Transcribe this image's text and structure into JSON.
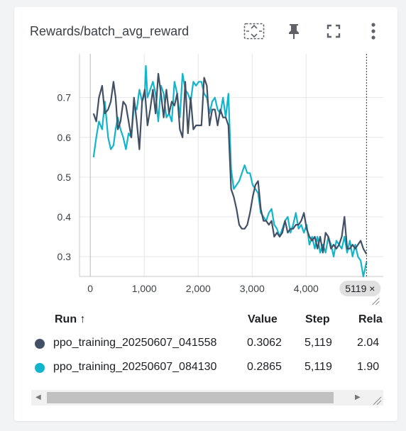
{
  "card": {
    "title": "Rewards/batch_avg_reward"
  },
  "toolbar": {
    "icons": [
      "fit-to-data-icon",
      "pin-icon",
      "fullscreen-icon",
      "more-vert-icon"
    ]
  },
  "chart_data": {
    "type": "line",
    "xlim": [
      -200,
      5430
    ],
    "ylim": [
      0.25,
      0.81
    ],
    "x_ticks": [
      "0",
      "1,000",
      "2,000",
      "3,000",
      "4,000"
    ],
    "x_tick_values": [
      0,
      1000,
      2000,
      3000,
      4000
    ],
    "y_ticks": [
      "0.3",
      "0.4",
      "0.5",
      "0.6",
      "0.7"
    ],
    "y_tick_values": [
      0.3,
      0.4,
      0.5,
      0.6,
      0.7
    ],
    "hover_step_label": "5119 ×",
    "hover_step": 5119,
    "series": [
      {
        "color": "#12b5cb",
        "points": [
          [
            60,
            0.55
          ],
          [
            110,
            0.6
          ],
          [
            160,
            0.64
          ],
          [
            220,
            0.62
          ],
          [
            270,
            0.69
          ],
          [
            330,
            0.6
          ],
          [
            380,
            0.57
          ],
          [
            430,
            0.58
          ],
          [
            470,
            0.62
          ],
          [
            510,
            0.65
          ],
          [
            560,
            0.62
          ],
          [
            610,
            0.6
          ],
          [
            660,
            0.57
          ],
          [
            710,
            0.61
          ],
          [
            760,
            0.6
          ],
          [
            810,
            0.68
          ],
          [
            860,
            0.67
          ],
          [
            910,
            0.72
          ],
          [
            960,
            0.69
          ],
          [
            1010,
            0.71
          ],
          [
            1030,
            0.78
          ],
          [
            1060,
            0.7
          ],
          [
            1110,
            0.72
          ],
          [
            1160,
            0.74
          ],
          [
            1210,
            0.71
          ],
          [
            1260,
            0.64
          ],
          [
            1310,
            0.73
          ],
          [
            1360,
            0.71
          ],
          [
            1410,
            0.65
          ],
          [
            1460,
            0.66
          ],
          [
            1510,
            0.64
          ],
          [
            1560,
            0.74
          ],
          [
            1610,
            0.71
          ],
          [
            1660,
            0.65
          ],
          [
            1710,
            0.76
          ],
          [
            1760,
            0.72
          ],
          [
            1810,
            0.71
          ],
          [
            1860,
            0.69
          ],
          [
            1910,
            0.74
          ],
          [
            1960,
            0.73
          ],
          [
            2010,
            0.74
          ],
          [
            2060,
            0.74
          ],
          [
            2110,
            0.71
          ],
          [
            2160,
            0.7
          ],
          [
            2210,
            0.66
          ],
          [
            2260,
            0.69
          ],
          [
            2310,
            0.7
          ],
          [
            2360,
            0.67
          ],
          [
            2410,
            0.66
          ],
          [
            2460,
            0.7
          ],
          [
            2510,
            0.65
          ],
          [
            2560,
            0.71
          ],
          [
            2610,
            0.52
          ],
          [
            2660,
            0.47
          ],
          [
            2710,
            0.48
          ],
          [
            2760,
            0.49
          ],
          [
            2810,
            0.51
          ],
          [
            2860,
            0.53
          ],
          [
            2910,
            0.51
          ],
          [
            2960,
            0.51
          ],
          [
            3010,
            0.48
          ],
          [
            3060,
            0.47
          ],
          [
            3110,
            0.46
          ],
          [
            3160,
            0.41
          ],
          [
            3210,
            0.4
          ],
          [
            3260,
            0.39
          ],
          [
            3310,
            0.41
          ],
          [
            3360,
            0.42
          ],
          [
            3410,
            0.38
          ],
          [
            3460,
            0.37
          ],
          [
            3510,
            0.35
          ],
          [
            3560,
            0.37
          ],
          [
            3610,
            0.39
          ],
          [
            3660,
            0.4
          ],
          [
            3710,
            0.36
          ],
          [
            3760,
            0.38
          ],
          [
            3810,
            0.41
          ],
          [
            3860,
            0.37
          ],
          [
            3910,
            0.38
          ],
          [
            3960,
            0.36
          ],
          [
            4010,
            0.38
          ],
          [
            4060,
            0.33
          ],
          [
            4110,
            0.35
          ],
          [
            4160,
            0.32
          ],
          [
            4210,
            0.35
          ],
          [
            4260,
            0.31
          ],
          [
            4310,
            0.33
          ],
          [
            4360,
            0.31
          ],
          [
            4410,
            0.35
          ],
          [
            4460,
            0.33
          ],
          [
            4510,
            0.3
          ],
          [
            4560,
            0.34
          ],
          [
            4610,
            0.33
          ],
          [
            4660,
            0.32
          ],
          [
            4710,
            0.35
          ],
          [
            4760,
            0.31
          ],
          [
            4810,
            0.34
          ],
          [
            4860,
            0.3
          ],
          [
            4910,
            0.33
          ],
          [
            4960,
            0.3
          ],
          [
            5010,
            0.29
          ],
          [
            5060,
            0.25
          ],
          [
            5119,
            0.2865
          ]
        ]
      },
      {
        "color": "#425066",
        "points": [
          [
            60,
            0.66
          ],
          [
            110,
            0.64
          ],
          [
            160,
            0.7
          ],
          [
            220,
            0.73
          ],
          [
            270,
            0.66
          ],
          [
            330,
            0.67
          ],
          [
            380,
            0.69
          ],
          [
            430,
            0.74
          ],
          [
            470,
            0.7
          ],
          [
            510,
            0.62
          ],
          [
            560,
            0.64
          ],
          [
            610,
            0.69
          ],
          [
            660,
            0.68
          ],
          [
            710,
            0.64
          ],
          [
            760,
            0.6
          ],
          [
            810,
            0.7
          ],
          [
            860,
            0.64
          ],
          [
            910,
            0.57
          ],
          [
            960,
            0.69
          ],
          [
            1010,
            0.72
          ],
          [
            1060,
            0.63
          ],
          [
            1110,
            0.67
          ],
          [
            1160,
            0.72
          ],
          [
            1210,
            0.66
          ],
          [
            1260,
            0.76
          ],
          [
            1310,
            0.71
          ],
          [
            1360,
            0.65
          ],
          [
            1410,
            0.72
          ],
          [
            1460,
            0.66
          ],
          [
            1510,
            0.69
          ],
          [
            1560,
            0.68
          ],
          [
            1610,
            0.71
          ],
          [
            1660,
            0.62
          ],
          [
            1710,
            0.6
          ],
          [
            1760,
            0.74
          ],
          [
            1810,
            0.61
          ],
          [
            1860,
            0.7
          ],
          [
            1910,
            0.62
          ],
          [
            1960,
            0.63
          ],
          [
            2010,
            0.63
          ],
          [
            2060,
            0.63
          ],
          [
            2110,
            0.75
          ],
          [
            2160,
            0.73
          ],
          [
            2210,
            0.63
          ],
          [
            2260,
            0.67
          ],
          [
            2310,
            0.67
          ],
          [
            2360,
            0.63
          ],
          [
            2410,
            0.67
          ],
          [
            2460,
            0.65
          ],
          [
            2510,
            0.65
          ],
          [
            2560,
            0.63
          ],
          [
            2610,
            0.47
          ],
          [
            2660,
            0.45
          ],
          [
            2710,
            0.42
          ],
          [
            2760,
            0.38
          ],
          [
            2810,
            0.37
          ],
          [
            2860,
            0.37
          ],
          [
            2910,
            0.38
          ],
          [
            2960,
            0.41
          ],
          [
            3010,
            0.45
          ],
          [
            3060,
            0.48
          ],
          [
            3110,
            0.49
          ],
          [
            3160,
            0.42
          ],
          [
            3210,
            0.39
          ],
          [
            3260,
            0.39
          ],
          [
            3310,
            0.38
          ],
          [
            3360,
            0.39
          ],
          [
            3410,
            0.35
          ],
          [
            3460,
            0.36
          ],
          [
            3510,
            0.35
          ],
          [
            3560,
            0.36
          ],
          [
            3610,
            0.39
          ],
          [
            3660,
            0.36
          ],
          [
            3710,
            0.37
          ],
          [
            3760,
            0.37
          ],
          [
            3810,
            0.38
          ],
          [
            3860,
            0.38
          ],
          [
            3910,
            0.39
          ],
          [
            3960,
            0.41
          ],
          [
            4010,
            0.37
          ],
          [
            4060,
            0.35
          ],
          [
            4110,
            0.34
          ],
          [
            4160,
            0.35
          ],
          [
            4210,
            0.32
          ],
          [
            4260,
            0.35
          ],
          [
            4310,
            0.31
          ],
          [
            4360,
            0.36
          ],
          [
            4410,
            0.35
          ],
          [
            4460,
            0.32
          ],
          [
            4510,
            0.33
          ],
          [
            4560,
            0.32
          ],
          [
            4610,
            0.33
          ],
          [
            4660,
            0.35
          ],
          [
            4710,
            0.4
          ],
          [
            4760,
            0.32
          ],
          [
            4810,
            0.32
          ],
          [
            4860,
            0.33
          ],
          [
            4910,
            0.32
          ],
          [
            4960,
            0.33
          ],
          [
            5010,
            0.34
          ],
          [
            5060,
            0.32
          ],
          [
            5119,
            0.3062
          ]
        ]
      }
    ]
  },
  "table": {
    "headers": {
      "run": "Run ↑",
      "value": "Value",
      "step": "Step",
      "relative": "Rela"
    },
    "rows": [
      {
        "color": "#425066",
        "run": "ppo_training_20250607_041558",
        "value": "0.3062",
        "step": "5,119",
        "relative": "2.04"
      },
      {
        "color": "#12b5cb",
        "run": "ppo_training_20250607_084130",
        "value": "0.2865",
        "step": "5,119",
        "relative": "1.90"
      }
    ]
  },
  "scrollbar": {
    "left_arrow": "◀",
    "right_arrow": "▶"
  }
}
